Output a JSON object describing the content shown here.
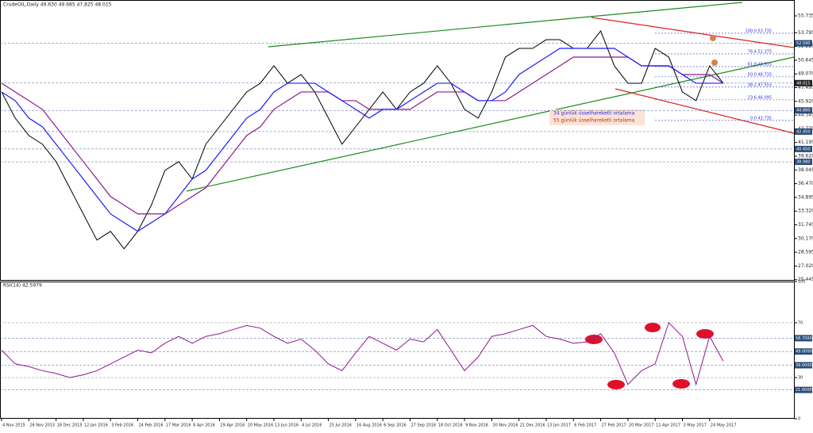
{
  "header": "CrudeOIL,Daily  49.630 49.685 47.825 48.015",
  "price_chart": {
    "ylim": [
      25.445,
      55.735
    ],
    "yticks": [
      {
        "value": 25.445,
        "label": "25.445"
      },
      {
        "value": 27.02,
        "label": "27.020"
      },
      {
        "value": 28.595,
        "label": "28.595"
      },
      {
        "value": 30.17,
        "label": "30.170"
      },
      {
        "value": 31.745,
        "label": "31.745"
      },
      {
        "value": 33.32,
        "label": "33.320"
      },
      {
        "value": 34.895,
        "label": "34.895"
      },
      {
        "value": 36.47,
        "label": "36.470"
      },
      {
        "value": 38.045,
        "label": "38.045"
      },
      {
        "value": 39.62,
        "label": "39.620"
      },
      {
        "value": 41.195,
        "label": "41.195"
      },
      {
        "value": 42.77,
        "label": "42.770"
      },
      {
        "value": 44.345,
        "label": "44.345"
      },
      {
        "value": 45.92,
        "label": "45.920"
      },
      {
        "value": 47.495,
        "label": "47.495"
      },
      {
        "value": 49.07,
        "label": "49.070"
      },
      {
        "value": 50.645,
        "label": "50.645"
      },
      {
        "value": 52.22,
        "label": "52.220"
      },
      {
        "value": 53.795,
        "label": "53.795"
      },
      {
        "value": 55.735,
        "label": "55.735"
      }
    ],
    "close": [
      47,
      44,
      42,
      41,
      39,
      36,
      33,
      30,
      31,
      29,
      31,
      34,
      38,
      39,
      37,
      41,
      43,
      45,
      47,
      48,
      50,
      48,
      49,
      47,
      44,
      41,
      43,
      45,
      47,
      45,
      47,
      48,
      50,
      48,
      45,
      44,
      47,
      51,
      52,
      52,
      53,
      53,
      52,
      52,
      54,
      50,
      48,
      48,
      52,
      51,
      47,
      46,
      50,
      48
    ],
    "ma34": [
      47,
      46,
      44,
      43,
      41,
      39,
      37,
      35,
      33,
      32,
      31,
      32,
      33,
      35,
      37,
      38,
      40,
      42,
      44,
      45,
      47,
      48,
      48,
      48,
      47,
      46,
      45,
      44,
      45,
      45,
      46,
      47,
      48,
      48,
      47,
      46,
      46,
      47,
      49,
      50,
      51,
      52,
      52,
      52,
      52,
      52,
      51,
      50,
      50,
      50,
      49,
      48,
      48,
      48
    ],
    "ma55": [
      48,
      47,
      46,
      45,
      43,
      41,
      39,
      37,
      35,
      34,
      33,
      33,
      33,
      34,
      35,
      36,
      38,
      40,
      42,
      43,
      45,
      46,
      47,
      47,
      47,
      46,
      46,
      45,
      45,
      45,
      45,
      46,
      47,
      47,
      47,
      46,
      46,
      46,
      47,
      48,
      49,
      50,
      51,
      51,
      51,
      51,
      51,
      50,
      50,
      50,
      49,
      49,
      49,
      48
    ],
    "ma34_color": "#1a1aff",
    "ma55_color": "#8b1a8b",
    "fib_levels": [
      {
        "value": 53.735,
        "label": "100.0 53.735"
      },
      {
        "value": 51.375,
        "label": "76.4 51.375"
      },
      {
        "value": 49.915,
        "label": "61.8 49.915"
      },
      {
        "value": 48.735,
        "label": "50.0 48.735"
      },
      {
        "value": 47.555,
        "label": "38.2 47.555"
      },
      {
        "value": 46.095,
        "label": "23.6 46.095"
      },
      {
        "value": 43.735,
        "label": "0.0 43.735"
      }
    ],
    "price_boxes": [
      {
        "value": 52.59,
        "label": "52.590"
      },
      {
        "value": 48.015,
        "label": "48.015"
      },
      {
        "value": 44.88,
        "label": "44.880"
      },
      {
        "value": 42.45,
        "label": "42.450"
      },
      {
        "value": 40.45,
        "label": "40.450"
      },
      {
        "value": 38.98,
        "label": "38.980"
      }
    ],
    "legend": [
      "34 günlük üsselhareketli ortalama",
      "55 günlük üsselhareketli ortalama"
    ]
  },
  "rsi": {
    "header": "RSI(14) 42.5979",
    "ylim": [
      0,
      100
    ],
    "yticks": [
      0,
      30,
      70,
      100
    ],
    "levels": [
      {
        "value": 58.7,
        "label": "58.7000"
      },
      {
        "value": 49,
        "label": "49.0000"
      },
      {
        "value": 39,
        "label": "39.0000"
      },
      {
        "value": 21,
        "label": "21.0000"
      }
    ],
    "values": [
      50,
      40,
      38,
      35,
      33,
      30,
      32,
      35,
      40,
      45,
      50,
      48,
      55,
      60,
      55,
      60,
      62,
      65,
      68,
      66,
      60,
      55,
      58,
      50,
      40,
      35,
      48,
      60,
      55,
      50,
      58,
      56,
      65,
      50,
      35,
      45,
      60,
      62,
      65,
      68,
      60,
      58,
      55,
      56,
      62,
      48,
      25,
      35,
      40,
      70,
      60,
      25,
      60,
      42
    ],
    "color": "#8b1a8b"
  },
  "dates": [
    "4 Nov 2015",
    "26 Nov 2015",
    "18 Dec 2015",
    "12 Jan 2016",
    "3 Feb 2016",
    "24 Feb 2016",
    "17 Mar 2016",
    "8 Apr 2016",
    "29 Apr 2016",
    "20 May 2016",
    "13 Jun 2016",
    "4 Jul 2016",
    "25 Jul 2016",
    "16 Aug 2016",
    "6 Sep 2016",
    "27 Sep 2016",
    "18 Oct 2016",
    "9 Nov 2016",
    "30 Nov 2016",
    "21 Dec 2016",
    "13 Jan 2017",
    "6 Feb 2017",
    "27 Feb 2017",
    "20 Mar 2017",
    "11 Apr 2017",
    "3 May 2017",
    "24 May 2017"
  ]
}
